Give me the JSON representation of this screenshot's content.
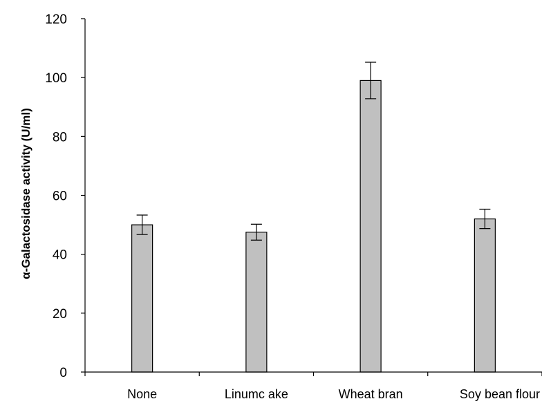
{
  "chart_data": {
    "type": "bar",
    "categories": [
      "None",
      "Linumc ake",
      "Wheat bran",
      "Soy bean flour"
    ],
    "values": [
      50,
      47.5,
      99,
      52
    ],
    "error_bars": [
      3.3,
      2.7,
      6.2,
      3.3
    ],
    "title": "",
    "xlabel": "",
    "ylabel": "α-Galactosidase activity (U/ml)",
    "ylim": [
      0,
      120
    ],
    "yticks": [
      0,
      20,
      40,
      60,
      80,
      100,
      120
    ],
    "ytick_labels": [
      "0",
      "20",
      "40",
      "60",
      "80",
      "100",
      "120"
    ],
    "grid": false,
    "legend": "none",
    "bar_color": "#c0c0c0",
    "bar_edge_color": "#000000",
    "axis_color": "#000000"
  }
}
